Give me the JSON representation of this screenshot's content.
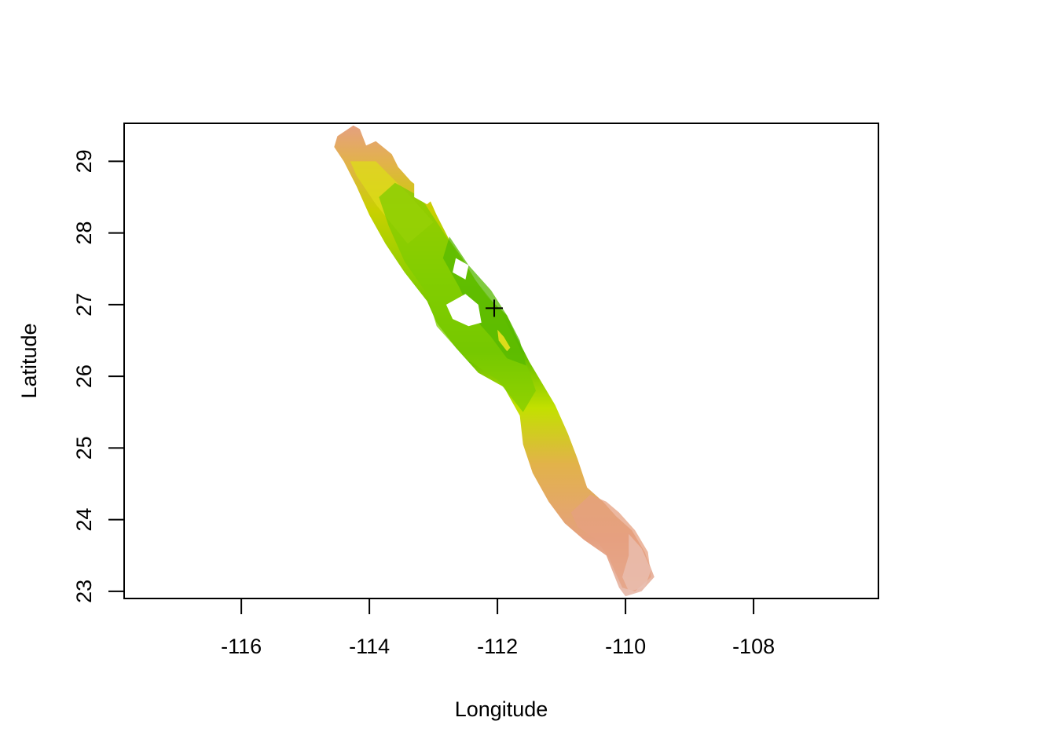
{
  "chart_data": {
    "type": "heatmap",
    "title": "",
    "xlabel": "Longitude",
    "ylabel": "Latitude",
    "xlim": [
      -117.83,
      -106.05
    ],
    "ylim": [
      22.9,
      29.53
    ],
    "xticks": [
      -116,
      -114,
      -112,
      -110,
      -108
    ],
    "yticks": [
      23,
      24,
      25,
      26,
      27,
      28,
      29
    ],
    "grid": false,
    "legend": "none",
    "colors": {
      "dark_green": "#55b800",
      "green": "#7fcc00",
      "yellow_green": "#c3e000",
      "yellow": "#dddc1a",
      "orange": "#e2b24a",
      "salmon": "#e5a080",
      "pink": "#e9c0b3"
    },
    "raster_outline": [
      [
        -114.5,
        29.35
      ],
      [
        -114.25,
        29.5
      ],
      [
        -114.15,
        29.45
      ],
      [
        -114.05,
        29.22
      ],
      [
        -113.9,
        29.28
      ],
      [
        -113.65,
        29.1
      ],
      [
        -113.55,
        28.92
      ],
      [
        -113.35,
        28.72
      ],
      [
        -113.1,
        28.55
      ],
      [
        -112.95,
        28.25
      ],
      [
        -112.75,
        27.9
      ],
      [
        -112.55,
        27.65
      ],
      [
        -112.35,
        27.35
      ],
      [
        -112.15,
        27.1
      ],
      [
        -111.85,
        26.85
      ],
      [
        -111.7,
        26.55
      ],
      [
        -111.5,
        26.2
      ],
      [
        -111.3,
        25.9
      ],
      [
        -111.1,
        25.6
      ],
      [
        -110.9,
        25.2
      ],
      [
        -110.75,
        24.85
      ],
      [
        -110.6,
        24.45
      ],
      [
        -110.35,
        24.25
      ],
      [
        -110.15,
        24.05
      ],
      [
        -109.9,
        23.85
      ],
      [
        -109.7,
        23.55
      ],
      [
        -109.55,
        23.2
      ],
      [
        -109.75,
        23.0
      ],
      [
        -110.0,
        22.93
      ],
      [
        -110.1,
        23.05
      ],
      [
        -110.3,
        23.5
      ],
      [
        -110.65,
        23.72
      ],
      [
        -110.95,
        23.95
      ],
      [
        -111.2,
        24.25
      ],
      [
        -111.45,
        24.65
      ],
      [
        -111.6,
        25.05
      ],
      [
        -111.65,
        25.45
      ],
      [
        -111.9,
        25.85
      ],
      [
        -112.3,
        26.05
      ],
      [
        -112.65,
        26.4
      ],
      [
        -112.95,
        26.75
      ],
      [
        -113.1,
        27.05
      ],
      [
        -113.45,
        27.45
      ],
      [
        -113.75,
        27.85
      ],
      [
        -114.0,
        28.25
      ],
      [
        -114.2,
        28.65
      ],
      [
        -114.4,
        29.0
      ],
      [
        -114.55,
        29.2
      ]
    ],
    "colored_bands": [
      {
        "color": "yellow",
        "points": [
          [
            -114.3,
            29.0
          ],
          [
            -113.9,
            29.0
          ],
          [
            -113.4,
            28.55
          ],
          [
            -113.0,
            28.15
          ],
          [
            -113.4,
            27.85
          ],
          [
            -113.9,
            28.4
          ],
          [
            -114.2,
            28.8
          ]
        ]
      },
      {
        "color": "green",
        "points": [
          [
            -113.6,
            28.7
          ],
          [
            -113.2,
            28.5
          ],
          [
            -112.8,
            27.95
          ],
          [
            -112.4,
            27.4
          ],
          [
            -111.95,
            26.9
          ],
          [
            -111.6,
            26.3
          ],
          [
            -111.4,
            25.8
          ],
          [
            -111.6,
            25.5
          ],
          [
            -112.0,
            25.95
          ],
          [
            -112.5,
            26.25
          ],
          [
            -112.95,
            26.7
          ],
          [
            -113.1,
            27.15
          ],
          [
            -113.45,
            27.6
          ],
          [
            -113.7,
            28.1
          ],
          [
            -113.85,
            28.5
          ]
        ]
      },
      {
        "color": "dark_green",
        "points": [
          [
            -112.75,
            27.95
          ],
          [
            -112.45,
            27.55
          ],
          [
            -112.1,
            27.2
          ],
          [
            -111.85,
            26.85
          ],
          [
            -111.65,
            26.5
          ],
          [
            -111.55,
            26.15
          ],
          [
            -111.85,
            26.25
          ],
          [
            -112.1,
            26.55
          ],
          [
            -112.4,
            26.85
          ],
          [
            -112.6,
            27.25
          ],
          [
            -112.85,
            27.65
          ]
        ]
      },
      {
        "color": "salmon",
        "points": [
          [
            -110.55,
            24.35
          ],
          [
            -110.3,
            24.25
          ],
          [
            -110.1,
            24.1
          ],
          [
            -109.85,
            23.85
          ],
          [
            -109.65,
            23.55
          ],
          [
            -109.6,
            23.2
          ],
          [
            -109.85,
            23.0
          ],
          [
            -110.05,
            23.05
          ],
          [
            -110.25,
            23.45
          ],
          [
            -110.45,
            23.72
          ],
          [
            -110.75,
            23.9
          ],
          [
            -110.85,
            24.1
          ]
        ]
      },
      {
        "color": "pink",
        "points": [
          [
            -109.95,
            23.8
          ],
          [
            -109.75,
            23.6
          ],
          [
            -109.6,
            23.3
          ],
          [
            -109.7,
            23.05
          ],
          [
            -109.95,
            23.0
          ],
          [
            -110.05,
            23.2
          ],
          [
            -109.95,
            23.5
          ]
        ]
      }
    ],
    "islands": [
      {
        "points": [
          [
            -112.8,
            27.0
          ],
          [
            -112.5,
            27.15
          ],
          [
            -112.3,
            27.0
          ],
          [
            -112.25,
            26.75
          ],
          [
            -112.45,
            26.7
          ],
          [
            -112.7,
            26.8
          ]
        ]
      },
      {
        "points": [
          [
            -113.3,
            28.7
          ],
          [
            -113.0,
            28.75
          ],
          [
            -112.9,
            28.55
          ],
          [
            -113.1,
            28.4
          ],
          [
            -113.3,
            28.5
          ]
        ]
      },
      {
        "points": [
          [
            -112.65,
            27.65
          ],
          [
            -112.45,
            27.55
          ],
          [
            -112.5,
            27.35
          ],
          [
            -112.7,
            27.45
          ]
        ]
      }
    ],
    "peninsula_patch": [
      [
        -112.0,
        26.65
      ],
      [
        -111.9,
        26.55
      ],
      [
        -111.8,
        26.4
      ],
      [
        -111.85,
        26.35
      ],
      [
        -111.98,
        26.5
      ]
    ],
    "marker": {
      "label": "+",
      "x": -112.05,
      "y": 26.95
    }
  }
}
